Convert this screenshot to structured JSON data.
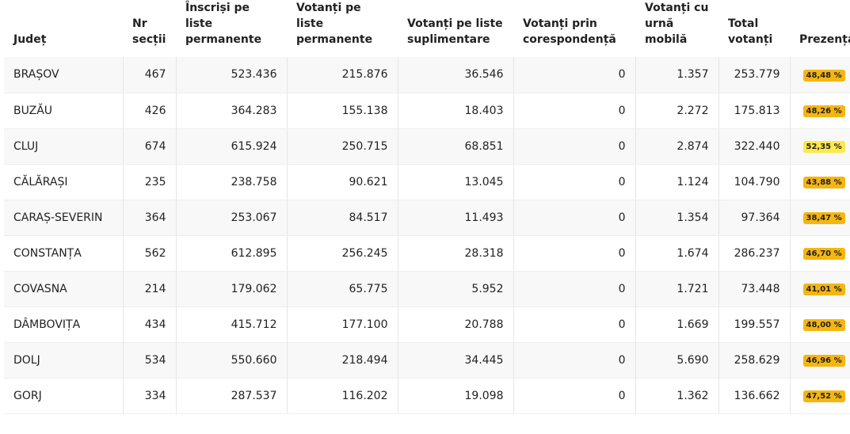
{
  "table": {
    "headers": [
      "Județ",
      "Nr secții",
      "Înscriși pe liste permanente",
      "Votanți pe liste permanente",
      "Votanți pe liste suplimentare",
      "Votanți prin corespondență",
      "Votanți cu urnă mobilă",
      "Total votanți",
      "Prezență"
    ],
    "rows": [
      [
        "BRAȘOV",
        "467",
        "523.436",
        "215.876",
        "36.546",
        "0",
        "1.357",
        "253.779",
        "48,48 %"
      ],
      [
        "BUZĂU",
        "426",
        "364.283",
        "155.138",
        "18.403",
        "0",
        "2.272",
        "175.813",
        "48,26 %"
      ],
      [
        "CLUJ",
        "674",
        "615.924",
        "250.715",
        "68.851",
        "0",
        "2.874",
        "322.440",
        "52,35 %"
      ],
      [
        "CĂLĂRAȘI",
        "235",
        "238.758",
        "90.621",
        "13.045",
        "0",
        "1.124",
        "104.790",
        "43,88 %"
      ],
      [
        "CARAȘ-SEVERIN",
        "364",
        "253.067",
        "84.517",
        "11.493",
        "0",
        "1.354",
        "97.364",
        "38,47 %"
      ],
      [
        "CONSTANȚA",
        "562",
        "612.895",
        "256.245",
        "28.318",
        "0",
        "1.674",
        "286.237",
        "46,70 %"
      ],
      [
        "COVASNA",
        "214",
        "179.062",
        "65.775",
        "5.952",
        "0",
        "1.721",
        "73.448",
        "41,01 %"
      ],
      [
        "DÂMBOVIȚA",
        "434",
        "415.712",
        "177.100",
        "20.788",
        "0",
        "1.669",
        "199.557",
        "48,00 %"
      ],
      [
        "DOLJ",
        "534",
        "550.660",
        "218.494",
        "34.445",
        "0",
        "5.690",
        "258.629",
        "46,96 %"
      ],
      [
        "GORJ",
        "334",
        "287.537",
        "116.202",
        "19.098",
        "0",
        "1.362",
        "136.662",
        "47,52 %"
      ]
    ],
    "badge_colors": [
      "#f5b60f",
      "#f5b60f",
      "#fde94a",
      "#f5b60f",
      "#f5b60f",
      "#f5b60f",
      "#f5b60f",
      "#f5b60f",
      "#f5b60f",
      "#f5b60f"
    ]
  }
}
